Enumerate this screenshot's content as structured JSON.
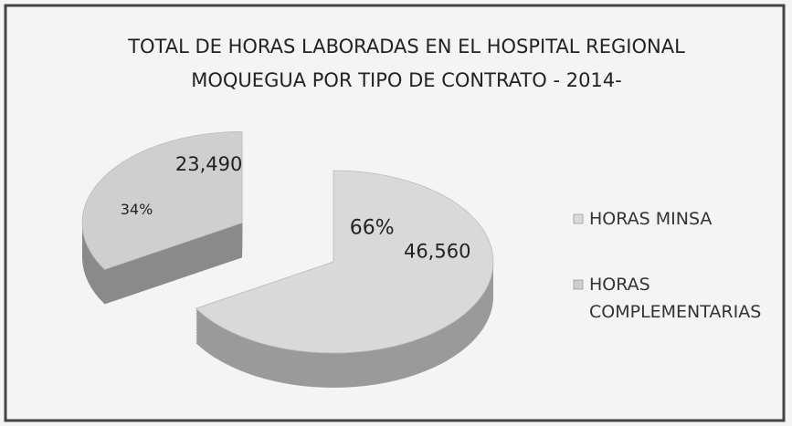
{
  "chart_data": {
    "type": "pie3d",
    "title": "TOTAL DE HORAS LABORADAS EN EL HOSPITAL REGIONAL",
    "subtitle": "MOQUEGUA POR TIPO DE CONTRATO  - 2014-",
    "categories": [
      "HORAS MINSA",
      "HORAS COMPLEMENTARIAS"
    ],
    "values": [
      46560,
      23490
    ],
    "value_labels": [
      "46,560",
      "23,490"
    ],
    "percentages": [
      66,
      34
    ],
    "percentage_labels": [
      "66%",
      "34%"
    ],
    "colors": [
      "#d9d9d9",
      "#cfcfcf"
    ],
    "side_colors": [
      "#9a9a9a",
      "#8a8a8a"
    ],
    "exploded": [
      false,
      true
    ],
    "legend": "right"
  }
}
